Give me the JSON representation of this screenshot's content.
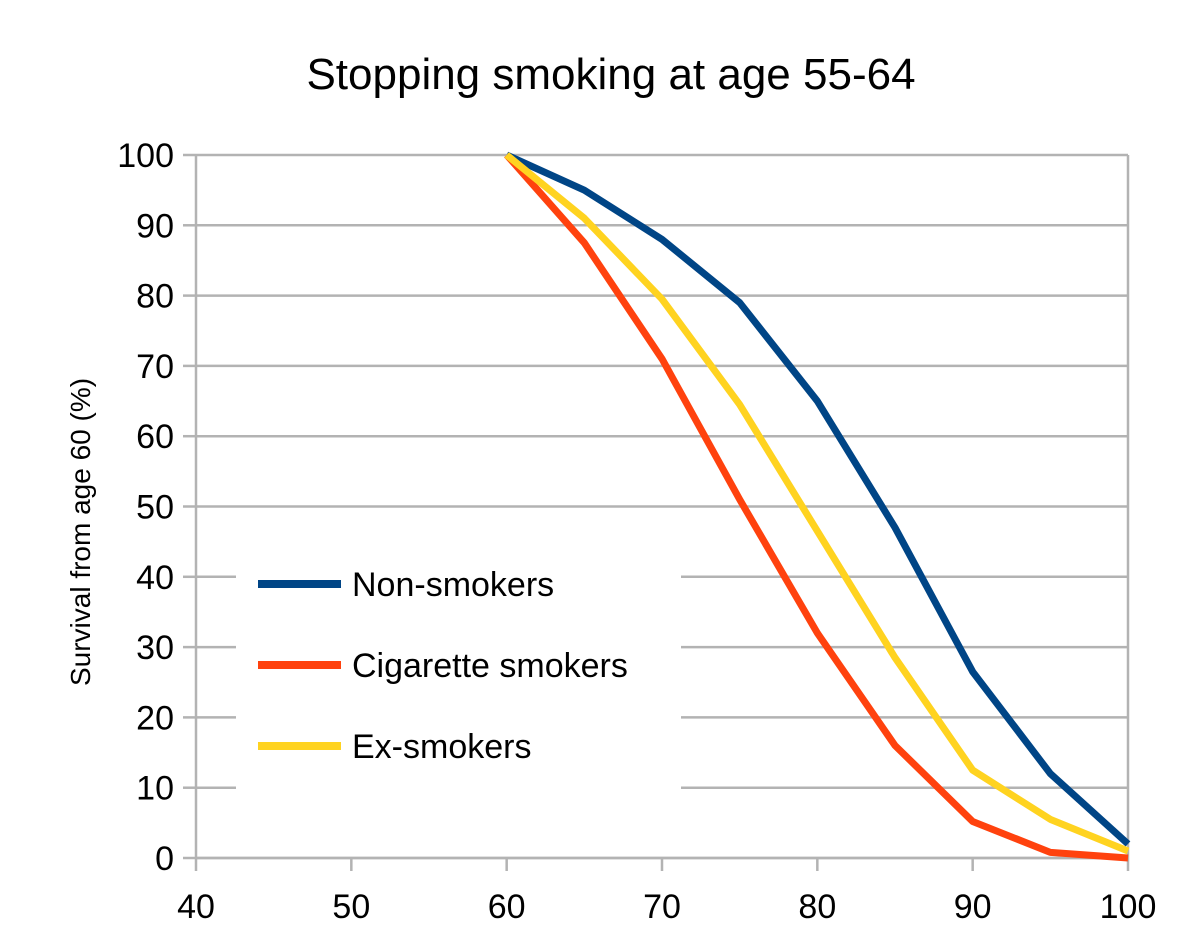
{
  "chart_data": {
    "type": "line",
    "title": "Stopping smoking at age 55-64",
    "xlabel": "",
    "ylabel": "Survival from age 60 (%)",
    "xlim": [
      40,
      100
    ],
    "ylim": [
      0,
      100
    ],
    "x_ticks": [
      "40",
      "50",
      "60",
      "70",
      "80",
      "90",
      "100"
    ],
    "y_ticks": [
      "0",
      "10",
      "20",
      "30",
      "40",
      "50",
      "60",
      "70",
      "80",
      "90",
      "100"
    ],
    "grid": "horizontal",
    "legend_position": "left-middle",
    "series": [
      {
        "name": "Non-smokers",
        "color": "#004586",
        "x": [
          60,
          65,
          70,
          75,
          80,
          85,
          90,
          95,
          100
        ],
        "values": [
          100,
          95,
          88,
          79,
          65,
          47,
          26.5,
          12,
          2
        ]
      },
      {
        "name": "Cigarette smokers",
        "color": "#ff420e",
        "x": [
          60,
          65,
          70,
          75,
          80,
          85,
          90,
          95,
          100
        ],
        "values": [
          100,
          87.5,
          71,
          51,
          32,
          16,
          5.2,
          0.8,
          0
        ]
      },
      {
        "name": "Ex-smokers",
        "color": "#ffd320",
        "x": [
          60,
          65,
          70,
          75,
          80,
          85,
          90,
          95,
          100
        ],
        "values": [
          100,
          91,
          79.5,
          64.5,
          46.5,
          28.5,
          12.5,
          5.5,
          1
        ]
      }
    ]
  }
}
